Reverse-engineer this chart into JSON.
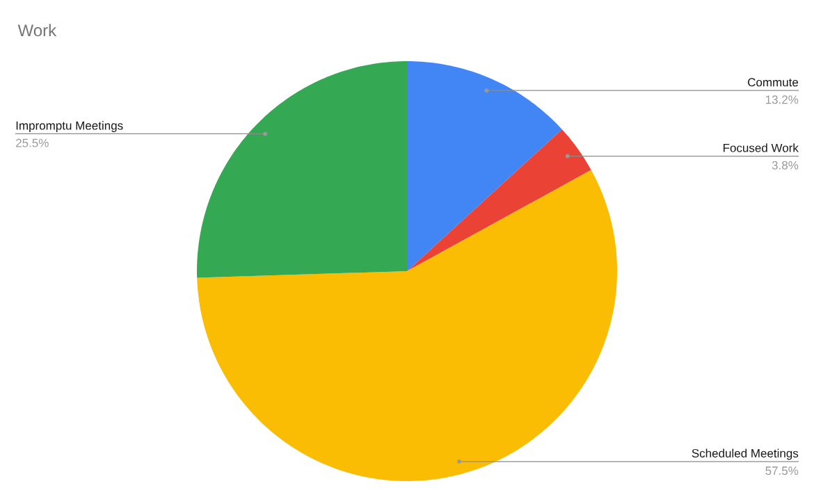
{
  "chart_data": {
    "type": "pie",
    "title": "Work",
    "categories": [
      "Commute",
      "Focused Work",
      "Scheduled Meetings",
      "Impromptu Meetings"
    ],
    "values": [
      13.2,
      3.8,
      57.5,
      25.5
    ],
    "value_labels": [
      "13.2%",
      "3.8%",
      "57.5%",
      "25.5%"
    ],
    "colors": [
      "#4285f4",
      "#ea4335",
      "#fbbc04",
      "#34a853"
    ]
  }
}
